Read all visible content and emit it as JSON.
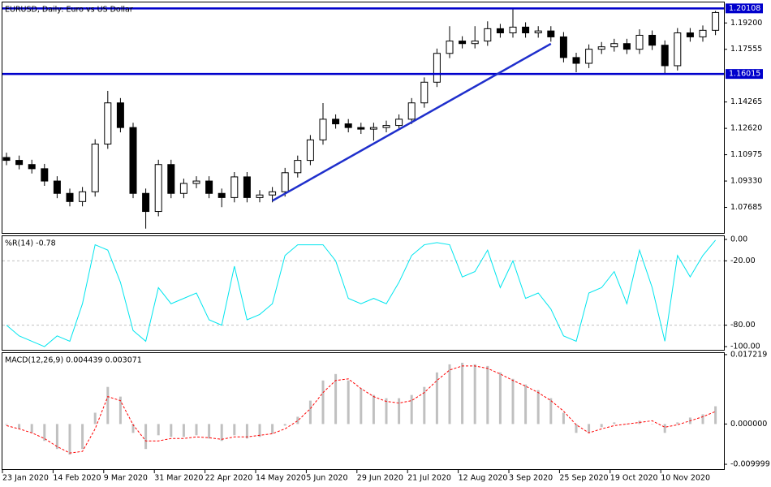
{
  "chart_data": [
    {
      "type": "candlestick",
      "title": "EURUSD, Daily:  Euro vs US Dollar",
      "open": [
        1.108,
        1.1062,
        1.1036,
        1.101,
        1.0933,
        1.0856,
        1.0805,
        1.0866,
        1.1164,
        1.1421,
        1.1267,
        1.0856,
        1.0743,
        1.1036,
        1.0856,
        1.0918,
        1.0933,
        1.0856,
        1.083,
        1.0959,
        1.083,
        1.0846,
        1.0866,
        1.0985,
        1.1062,
        1.119,
        1.1319,
        1.129,
        1.1267,
        1.1257,
        1.1267,
        1.128,
        1.1319,
        1.1421,
        1.155,
        1.173,
        1.1807,
        1.1791,
        1.1807,
        1.1884,
        1.1858,
        1.1894,
        1.1858,
        1.187,
        1.1833,
        1.1704,
        1.1668,
        1.1756,
        1.1771,
        1.1791,
        1.1756,
        1.1843,
        1.1781,
        1.1653,
        1.1858,
        1.1833,
        1.1874
      ],
      "high": [
        1.111,
        1.1092,
        1.1066,
        1.104,
        1.0963,
        1.0886,
        1.0896,
        1.1194,
        1.1496,
        1.1451,
        1.1297,
        1.0886,
        1.1066,
        1.1066,
        1.0948,
        1.0963,
        1.0963,
        1.0886,
        1.0989,
        1.0989,
        1.0876,
        1.0896,
        1.1015,
        1.1092,
        1.122,
        1.142,
        1.1349,
        1.132,
        1.1297,
        1.1297,
        1.131,
        1.1349,
        1.1451,
        1.158,
        1.176,
        1.19,
        1.1837,
        1.19,
        1.193,
        1.1914,
        1.2011,
        1.1924,
        1.19,
        1.19,
        1.1863,
        1.1734,
        1.1786,
        1.1801,
        1.1821,
        1.1821,
        1.188,
        1.1873,
        1.1811,
        1.1888,
        1.1888,
        1.1904,
        1.1995
      ],
      "low": [
        1.1032,
        1.1006,
        1.098,
        1.0903,
        1.0826,
        1.0775,
        1.0775,
        1.0836,
        1.1134,
        1.1237,
        1.0826,
        1.0636,
        1.0713,
        1.0826,
        1.0826,
        1.0888,
        1.0826,
        1.077,
        1.08,
        1.08,
        1.08,
        1.08,
        1.0836,
        1.0955,
        1.1032,
        1.116,
        1.126,
        1.1237,
        1.1227,
        1.1185,
        1.1237,
        1.125,
        1.1289,
        1.1391,
        1.152,
        1.17,
        1.1761,
        1.1761,
        1.1777,
        1.1828,
        1.1828,
        1.1828,
        1.1828,
        1.1803,
        1.1674,
        1.1612,
        1.1638,
        1.1726,
        1.1741,
        1.1726,
        1.1726,
        1.1751,
        1.1603,
        1.1623,
        1.1803,
        1.1803,
        1.1844
      ],
      "close": [
        1.1062,
        1.1036,
        1.101,
        1.0933,
        1.0856,
        1.0805,
        1.0866,
        1.1164,
        1.1421,
        1.1267,
        1.0856,
        1.0743,
        1.1036,
        1.0856,
        1.0918,
        1.0933,
        1.0856,
        1.083,
        1.0959,
        1.083,
        1.0846,
        1.0866,
        1.0985,
        1.1062,
        1.119,
        1.1319,
        1.129,
        1.1267,
        1.1257,
        1.1267,
        1.128,
        1.1319,
        1.1421,
        1.155,
        1.173,
        1.1807,
        1.1791,
        1.1807,
        1.1884,
        1.1858,
        1.1894,
        1.1858,
        1.187,
        1.1833,
        1.1704,
        1.1668,
        1.1756,
        1.1771,
        1.1791,
        1.1756,
        1.1843,
        1.1781,
        1.1653,
        1.1858,
        1.1833,
        1.1874,
        1.1985
      ],
      "up_color": "#ffffff",
      "down_color": "#000000",
      "wick_color": "#000000",
      "ylim": [
        1.0609,
        1.2048
      ],
      "yticks": [
        {
          "value": 1.192,
          "label": "1.19200"
        },
        1.17555,
        1.14265,
        {
          "value": 1.1262,
          "label": "1.12620"
        },
        1.10975,
        {
          "value": 1.0933,
          "label": "1.09330"
        },
        1.07685
      ],
      "hlines": [
        1.20108,
        1.16015
      ],
      "hline_color": "#0000cc",
      "trendline": {
        "start": [
          21,
          1.081
        ],
        "end": [
          43,
          1.179
        ],
        "color": "#1f2fcc"
      }
    },
    {
      "type": "line",
      "title": "%R(14) -0.78",
      "values": [
        -80,
        -90,
        -95,
        -100,
        -90,
        -95,
        -60,
        -5,
        -10,
        -40,
        -85,
        -95,
        -45,
        -60,
        -55,
        -50,
        -75,
        -80,
        -25,
        -75,
        -70,
        -60,
        -15,
        -5,
        -5,
        -5,
        -20,
        -55,
        -60,
        -55,
        -60,
        -40,
        -15,
        -5,
        -3,
        -5,
        -35,
        -30,
        -10,
        -45,
        -20,
        -55,
        -50,
        -65,
        -90,
        -95,
        -50,
        -45,
        -30,
        -60,
        -10,
        -45,
        -95,
        -15,
        -35,
        -15,
        -0.78
      ],
      "color": "#00e5ee",
      "ylim": [
        -103,
        3
      ],
      "yticks": [
        {
          "value": 0,
          "label": "0.00"
        },
        {
          "value": -20,
          "label": "-20.00"
        },
        {
          "value": -80,
          "label": "-80.00"
        },
        {
          "value": -100,
          "label": "-100.00"
        }
      ],
      "levels": [
        -20,
        -80
      ]
    },
    {
      "type": "macd",
      "title": "MACD(12,26,9) 0.004439 0.003071",
      "categories": [
        "23 Jan 2020",
        null,
        null,
        null,
        "14 Feb 2020",
        null,
        null,
        null,
        "9 Mar 2020",
        null,
        null,
        null,
        "31 Mar 2020",
        null,
        null,
        null,
        "22 Apr 2020",
        null,
        null,
        null,
        "14 May 2020",
        null,
        null,
        null,
        "5 Jun 2020",
        null,
        null,
        null,
        "29 Jun 2020",
        null,
        null,
        null,
        "21 Jul 2020",
        null,
        null,
        null,
        "12 Aug 2020",
        null,
        null,
        null,
        "3 Sep 2020",
        null,
        null,
        null,
        "25 Sep 2020",
        null,
        null,
        null,
        "19 Oct 2020",
        null,
        null,
        null,
        "10 Nov 2020",
        null,
        null,
        null,
        null
      ],
      "values": [
        -0.0002,
        -0.0012,
        -0.0022,
        -0.0042,
        -0.0062,
        -0.0076,
        -0.0062,
        0.0028,
        0.0092,
        0.0068,
        -0.0022,
        -0.0062,
        -0.0028,
        -0.0032,
        -0.0032,
        -0.0028,
        -0.0036,
        -0.0042,
        -0.0028,
        -0.0036,
        -0.0032,
        -0.0024,
        -0.0004,
        0.0018,
        0.0058,
        0.0108,
        0.0124,
        0.0108,
        0.0088,
        0.0072,
        0.0064,
        0.0064,
        0.0072,
        0.0092,
        0.0128,
        0.0148,
        0.0152,
        0.0148,
        0.0144,
        0.0128,
        0.0112,
        0.0098,
        0.0084,
        0.0064,
        0.0028,
        -0.0022,
        -0.0022,
        -0.0008,
        0.0004,
        0,
        0.0008,
        0,
        -0.0022,
        0.0004,
        0.0016,
        0.0024,
        0.0044
      ],
      "color": "#c0c0c0",
      "signal": {
        "values": [
          -0.0004,
          -0.0012,
          -0.0022,
          -0.0036,
          -0.0056,
          -0.0072,
          -0.0068,
          -0.0012,
          0.0068,
          0.0058,
          -0.0002,
          -0.0042,
          -0.0042,
          -0.0036,
          -0.0036,
          -0.0032,
          -0.0034,
          -0.0038,
          -0.0032,
          -0.0032,
          -0.0028,
          -0.0024,
          -0.0012,
          0.0008,
          0.0038,
          0.0078,
          0.0108,
          0.0112,
          0.0088,
          0.0068,
          0.0056,
          0.0052,
          0.0058,
          0.0078,
          0.0108,
          0.0134,
          0.0144,
          0.0144,
          0.0138,
          0.0124,
          0.0108,
          0.0094,
          0.0078,
          0.0058,
          0.0032,
          -0.0002,
          -0.0022,
          -0.0012,
          -0.0004,
          0,
          0.0004,
          0.0008,
          -0.0008,
          -0.0002,
          0.0008,
          0.0018,
          0.0031
        ],
        "color": "#ff0000"
      },
      "ylim": [
        -0.0112,
        0.0176
      ],
      "yticks": [
        0.017219,
        {
          "value": 0,
          "label": "0.000000"
        },
        -0.009999
      ]
    }
  ]
}
